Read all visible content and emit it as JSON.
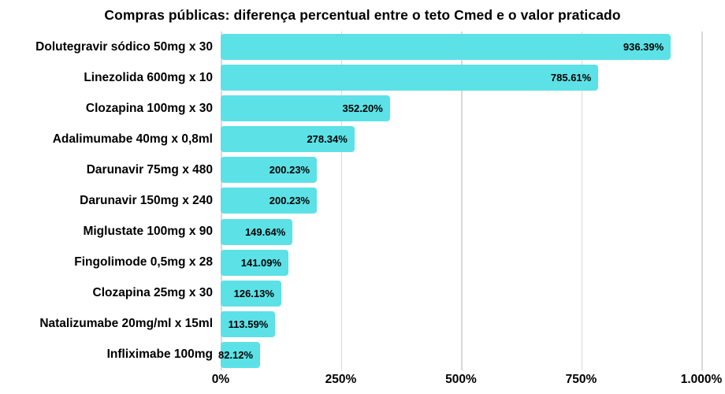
{
  "chart_data": {
    "type": "bar",
    "orientation": "horizontal",
    "title": "Compras públicas: diferença percentual entre o teto Cmed e o valor praticado",
    "categories": [
      "Dolutegravir sódico 50mg x 30",
      "Linezolida 600mg x 10",
      "Clozapina 100mg x 30",
      "Adalimumabe 40mg x 0,8ml",
      "Darunavir 75mg x 480",
      "Darunavir 150mg x 240",
      "Miglustate 100mg x 90",
      "Fingolimode 0,5mg x 28",
      "Clozapina 25mg x 30",
      "Natalizumabe 20mg/ml x 15ml",
      "Infliximabe 100mg"
    ],
    "values": [
      936.39,
      785.61,
      352.2,
      278.34,
      200.23,
      200.23,
      149.64,
      141.09,
      126.13,
      113.59,
      82.12
    ],
    "value_labels": [
      "936.39%",
      "785.61%",
      "352.20%",
      "278.34%",
      "200.23%",
      "200.23%",
      "149.64%",
      "141.09%",
      "126.13%",
      "113.59%",
      "82.12%"
    ],
    "xlabel": "",
    "ylabel": "",
    "xlim": [
      0,
      1000
    ],
    "x_tick_values": [
      0,
      250,
      500,
      750,
      1000
    ],
    "x_tick_labels": [
      "0%",
      "250%",
      "500%",
      "750%",
      "1.000%"
    ],
    "grid": true,
    "legend": false,
    "colors": {
      "bar": "#5CE1E6",
      "grid": "#d9d9d9",
      "text": "#000000",
      "background": "#ffffff"
    }
  }
}
